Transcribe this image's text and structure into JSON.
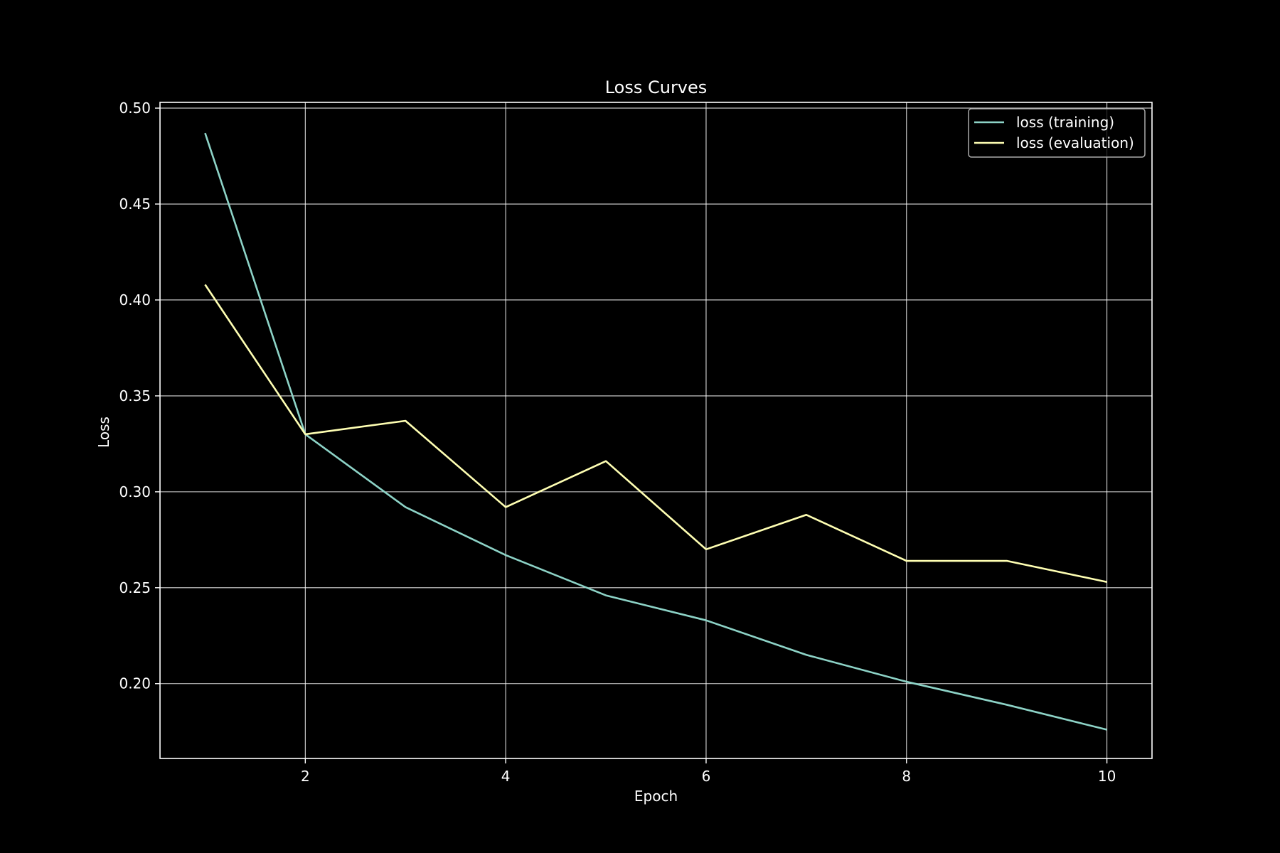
{
  "chart_data": {
    "type": "line",
    "title": "Loss Curves",
    "xlabel": "Epoch",
    "ylabel": "Loss",
    "x": [
      1,
      2,
      3,
      4,
      5,
      6,
      7,
      8,
      9,
      10
    ],
    "xlim": [
      0.55,
      10.45
    ],
    "ylim": [
      0.161,
      0.503
    ],
    "xticks": [
      2,
      4,
      6,
      8,
      10
    ],
    "yticks": [
      0.2,
      0.25,
      0.3,
      0.35,
      0.4,
      0.45,
      0.5
    ],
    "grid": true,
    "legend_position": "top-right",
    "series": [
      {
        "name": "loss (training)",
        "color": "#8dd3c7",
        "values": [
          0.487,
          0.33,
          0.292,
          0.267,
          0.246,
          0.233,
          0.215,
          0.201,
          0.189,
          0.176
        ]
      },
      {
        "name": "loss (evaluation)",
        "color": "#ffffb3",
        "values": [
          0.408,
          0.33,
          0.337,
          0.292,
          0.316,
          0.27,
          0.288,
          0.264,
          0.264,
          0.253
        ]
      }
    ]
  }
}
